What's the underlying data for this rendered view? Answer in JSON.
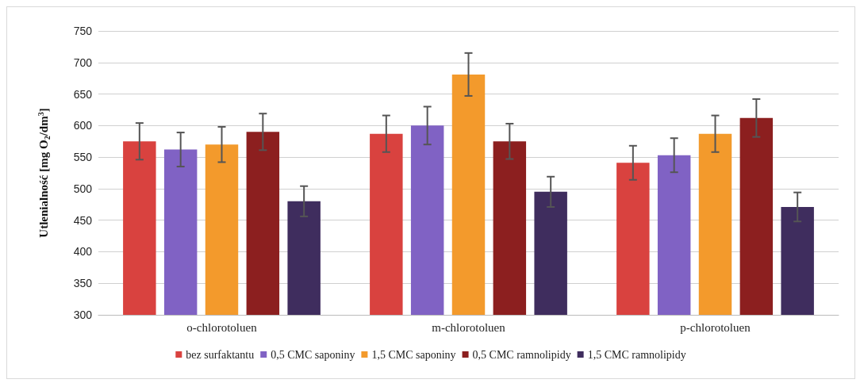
{
  "chart_data": {
    "type": "bar",
    "ylabel": "Utlenialność [mg O$_{2}$/dm$^{3}$]",
    "categories": [
      "o-chlorotoluen",
      "m-chlorotoluen",
      "p-chlorotoluen"
    ],
    "series": [
      {
        "name": "bez surfaktantu",
        "color": "#d9423f",
        "values": [
          575,
          587,
          541
        ],
        "errors": [
          29,
          29,
          27
        ]
      },
      {
        "name": "0,5 CMC saponiny",
        "color": "#8062c4",
        "values": [
          562,
          600,
          553
        ],
        "errors": [
          27,
          30,
          27
        ]
      },
      {
        "name": "1,5 CMC saponiny",
        "color": "#f39a2c",
        "values": [
          570,
          681,
          587
        ],
        "errors": [
          28,
          34,
          29
        ]
      },
      {
        "name": "0,5 CMC ramnolipidy",
        "color": "#8c1f1f",
        "values": [
          590,
          575,
          612
        ],
        "errors": [
          29,
          28,
          30
        ]
      },
      {
        "name": "1,5 CMC ramnolipidy",
        "color": "#3f2d5e",
        "values": [
          480,
          495,
          471
        ],
        "errors": [
          24,
          24,
          23
        ]
      }
    ],
    "ylim": [
      300,
      750
    ],
    "yticks": [
      300,
      350,
      400,
      450,
      500,
      550,
      600,
      650,
      700,
      750
    ],
    "grid": "y",
    "legend": "bottom"
  }
}
